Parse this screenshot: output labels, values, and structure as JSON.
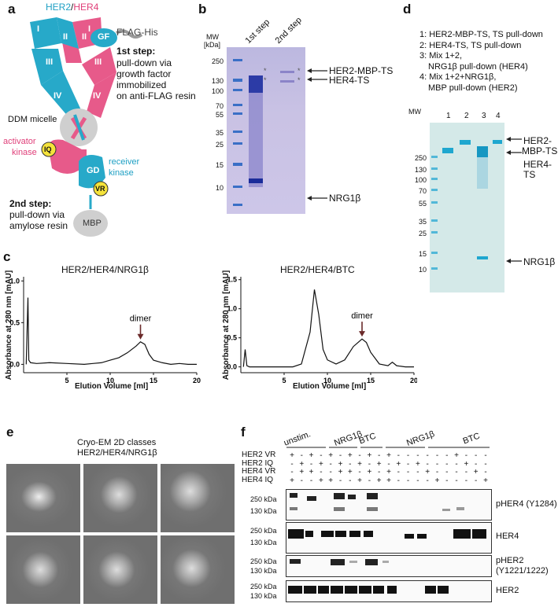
{
  "panels": {
    "a": "a",
    "b": "b",
    "c": "c",
    "d": "d",
    "e": "e",
    "f": "f"
  },
  "panel_a": {
    "her2": "HER2",
    "slash": "/",
    "her4": "HER4",
    "flag_his": "FLAG-His",
    "gf": "GF",
    "domain_I": "I",
    "domain_II": "II",
    "domain_III": "III",
    "domain_IV": "IV",
    "step1_title": "1st step:",
    "step1_lines": [
      "pull-down via",
      "growth factor",
      "immobilized",
      "on anti-FLAG resin"
    ],
    "ddm": "DDM micelle",
    "activator": "activator",
    "activator2": "kinase",
    "iq": "IQ",
    "gd": "GD",
    "vr": "VR",
    "receiver": "receiver",
    "receiver2": "kinase",
    "step2_title": "2nd step:",
    "step2_lines": [
      "pull-down via",
      "amylose resin"
    ],
    "mbp": "MBP"
  },
  "panel_b": {
    "mw_title": "MW",
    "mw_unit": "[kDa]",
    "lane1": "1st step",
    "lane2": "2nd step",
    "markers": [
      "250",
      "130",
      "100",
      "70",
      "55",
      "35",
      "25",
      "15",
      "10"
    ],
    "labels": [
      "HER2-MBP-TS",
      "HER4-TS",
      "NRG1β"
    ],
    "star": "*"
  },
  "panel_c": {
    "ylabel": "Absorbance at 280 nm [mAU]",
    "xlabel": "Elution Volume [ml]",
    "left_title": "HER2/HER4/NRG1β",
    "right_title": "HER2/HER4/BTC",
    "dimer": "dimer",
    "left_yticks": [
      "1.0",
      "0.5",
      "0.0"
    ],
    "left_xticks": [
      "5",
      "10",
      "15",
      "20"
    ],
    "right_yticks": [
      "1.5",
      "1.0",
      "0.5",
      "0.0"
    ],
    "right_xticks": [
      "5",
      "10",
      "15",
      "20"
    ]
  },
  "chart_data": [
    {
      "type": "line",
      "title": "HER2/HER4/NRG1β",
      "xlabel": "Elution Volume [ml]",
      "ylabel": "Absorbance at 280 nm [mAU]",
      "xlim": [
        0,
        20
      ],
      "ylim": [
        -0.1,
        1.05
      ],
      "x": [
        0.3,
        0.5,
        0.6,
        0.8,
        1.5,
        3,
        5,
        7,
        8,
        9,
        10,
        11,
        12,
        13,
        13.5,
        14,
        14.5,
        15,
        16,
        17,
        18,
        19,
        20
      ],
      "y": [
        0.0,
        0.8,
        0.05,
        0.02,
        0.01,
        0.02,
        0.01,
        0.0,
        0.01,
        0.02,
        0.05,
        0.08,
        0.14,
        0.22,
        0.27,
        0.24,
        0.12,
        0.05,
        0.02,
        0.0,
        0.01,
        0.0,
        0.0
      ],
      "annotations": [
        "dimer"
      ]
    },
    {
      "type": "line",
      "title": "HER2/HER4/BTC",
      "xlabel": "Elution Volume [ml]",
      "ylabel": "Absorbance at 280 nm [mAU]",
      "xlim": [
        0,
        20
      ],
      "ylim": [
        -0.1,
        1.55
      ],
      "x": [
        0.3,
        0.5,
        0.7,
        1,
        3,
        6,
        7,
        8,
        8.5,
        9,
        9.5,
        10,
        11,
        12,
        13,
        14,
        14.5,
        15,
        16,
        17,
        17.5,
        18,
        19,
        20
      ],
      "y": [
        0.0,
        0.3,
        0.02,
        0.0,
        0.0,
        0.0,
        0.05,
        0.6,
        1.33,
        0.9,
        0.3,
        0.12,
        0.05,
        0.12,
        0.35,
        0.48,
        0.42,
        0.25,
        0.05,
        0.02,
        0.08,
        0.02,
        0.0,
        0.0
      ],
      "annotations": [
        "dimer"
      ]
    }
  ],
  "panel_d": {
    "legend": [
      "1: HER2-MBP-TS, TS pull-down",
      "2: HER4-TS, TS pull-down",
      "3: Mix 1+2,",
      "NRG1β pull-down (HER4)",
      "4: Mix 1+2+NRG1β,",
      "MBP pull-down (HER2)"
    ],
    "mw": "MW",
    "lanes": [
      "1",
      "2",
      "3",
      "4"
    ],
    "markers": [
      "250",
      "130",
      "100",
      "70",
      "55",
      "35",
      "25",
      "15",
      "10"
    ],
    "labels": [
      "HER2-",
      "MBP-TS",
      "HER4-",
      "TS",
      "NRG1β"
    ]
  },
  "panel_e": {
    "title1": "Cryo-EM 2D classes",
    "title2": "HER2/HER4/NRG1β"
  },
  "panel_f": {
    "groups": [
      "unstim.",
      "NRG1β",
      "BTC",
      "NRG1β",
      "BTC"
    ],
    "rows": [
      "HER2 VR",
      "HER2 IQ",
      "HER4 VR",
      "HER4 IQ"
    ],
    "signs": [
      [
        "+",
        "-",
        "+",
        "-",
        "+",
        "-",
        "+",
        "-",
        "+",
        "-",
        "+",
        "-",
        "-",
        "-",
        "-",
        "-",
        "-",
        "+",
        "-",
        "-",
        "-"
      ],
      [
        "-",
        "+",
        "-",
        "+",
        "-",
        "+",
        "-",
        "+",
        "-",
        "+",
        "-",
        "+",
        "-",
        "+",
        "-",
        "-",
        "-",
        "-",
        "+",
        "-",
        "-"
      ],
      [
        "-",
        "+",
        "+",
        "-",
        "-",
        "+",
        "+",
        "-",
        "+",
        "-",
        "+",
        "-",
        "-",
        "-",
        "+",
        "-",
        "-",
        "-",
        "-",
        "+",
        "-"
      ],
      [
        "+",
        "-",
        "-",
        "+",
        "+",
        "-",
        "-",
        "+",
        "-",
        "+",
        "+",
        "-",
        "-",
        "-",
        "-",
        "+",
        "-",
        "-",
        "-",
        "-",
        "+"
      ]
    ],
    "kda": [
      "250 kDa",
      "130 kDa"
    ],
    "blots": [
      "pHER4 (Y1284)",
      "HER4",
      "pHER2",
      "(Y1221/1222)",
      "HER2"
    ]
  }
}
